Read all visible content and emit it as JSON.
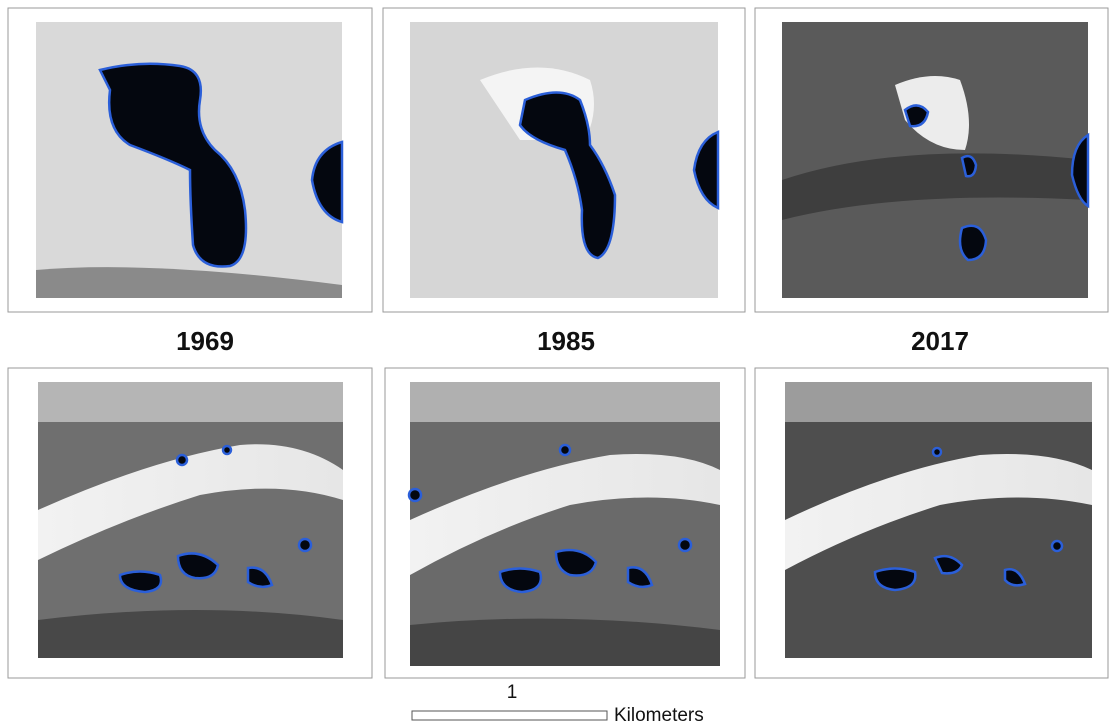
{
  "labels": [
    "1969",
    "1985",
    "2017"
  ],
  "scale_bar": {
    "value_label": "1",
    "unit": "Kilometers"
  }
}
